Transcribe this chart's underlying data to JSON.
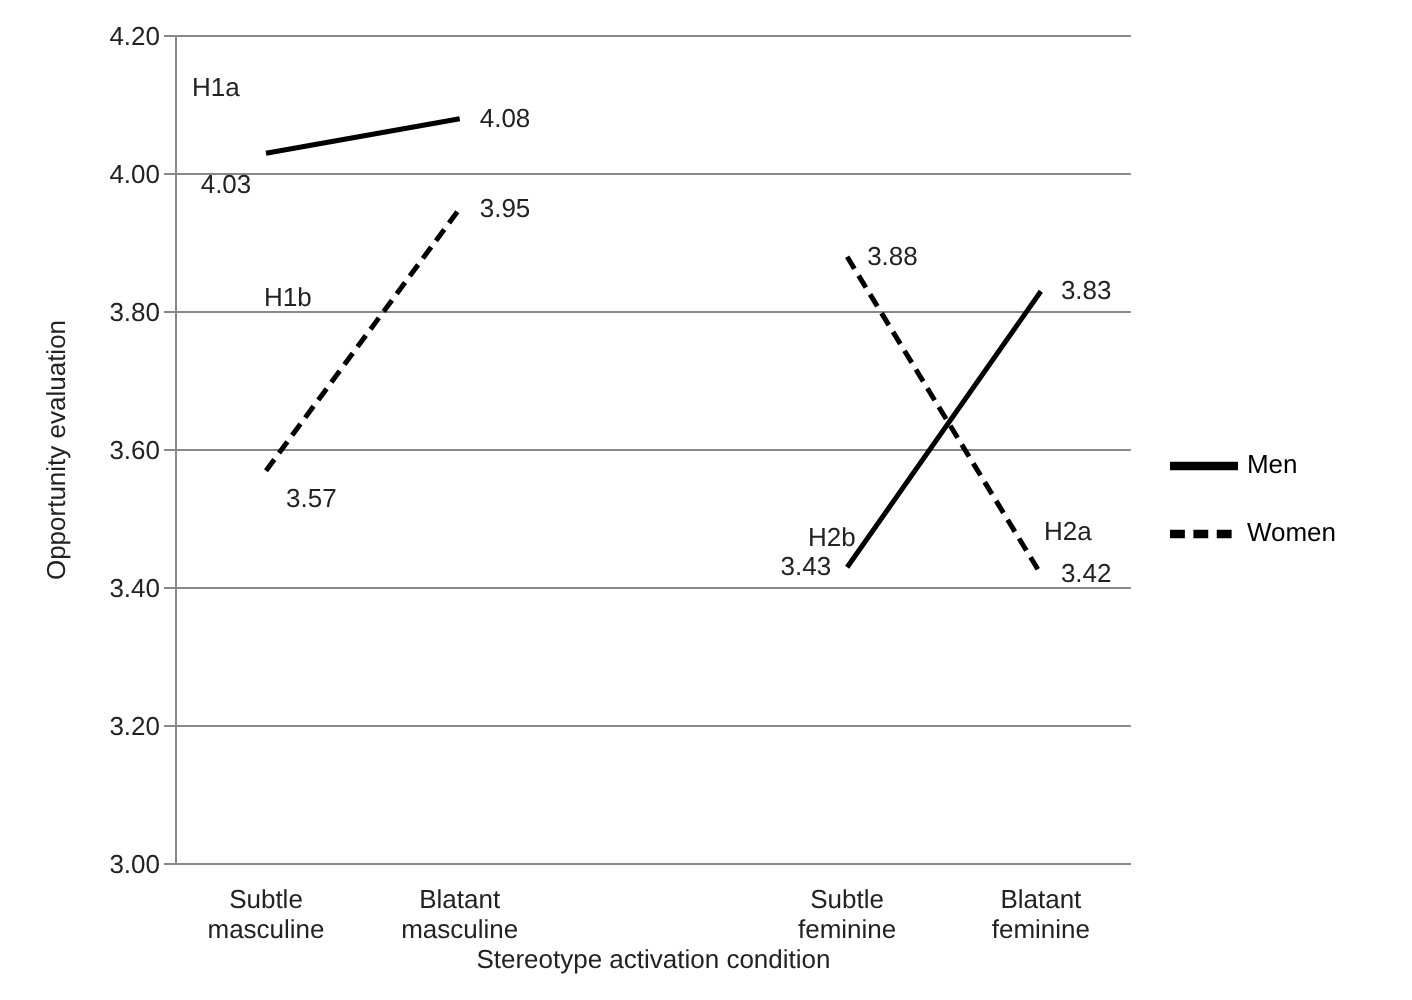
{
  "chart_data": {
    "type": "line",
    "xlabel": "Stereotype activation condition",
    "ylabel": "Opportunity evaluation",
    "categories": [
      "Subtle masculine",
      "Blatant masculine",
      null,
      "Subtle feminine",
      "Blatant feminine"
    ],
    "series": [
      {
        "name": "Men",
        "color": "#000000",
        "line_style": "solid",
        "values": [
          4.03,
          4.08,
          null,
          3.43,
          3.83
        ]
      },
      {
        "name": "Women",
        "color": "#000000",
        "line_style": "dashed",
        "values": [
          3.57,
          3.95,
          null,
          3.88,
          3.42
        ]
      }
    ],
    "ylim": [
      3.0,
      4.2
    ],
    "yticks": [
      {
        "value": 3.0,
        "label": "3.00"
      },
      {
        "value": 3.2,
        "label": "3.20"
      },
      {
        "value": 3.4,
        "label": "3.40"
      },
      {
        "value": 3.6,
        "label": "3.60"
      },
      {
        "value": 3.8,
        "label": "3.80"
      },
      {
        "value": 4.0,
        "label": "4.00"
      },
      {
        "value": 4.2,
        "label": "4.20"
      }
    ],
    "grid": "y",
    "legend": "right",
    "marker": "none",
    "data_labels": true,
    "annotations": [
      "H1a",
      "H1b",
      "H2b",
      "H2a"
    ]
  }
}
